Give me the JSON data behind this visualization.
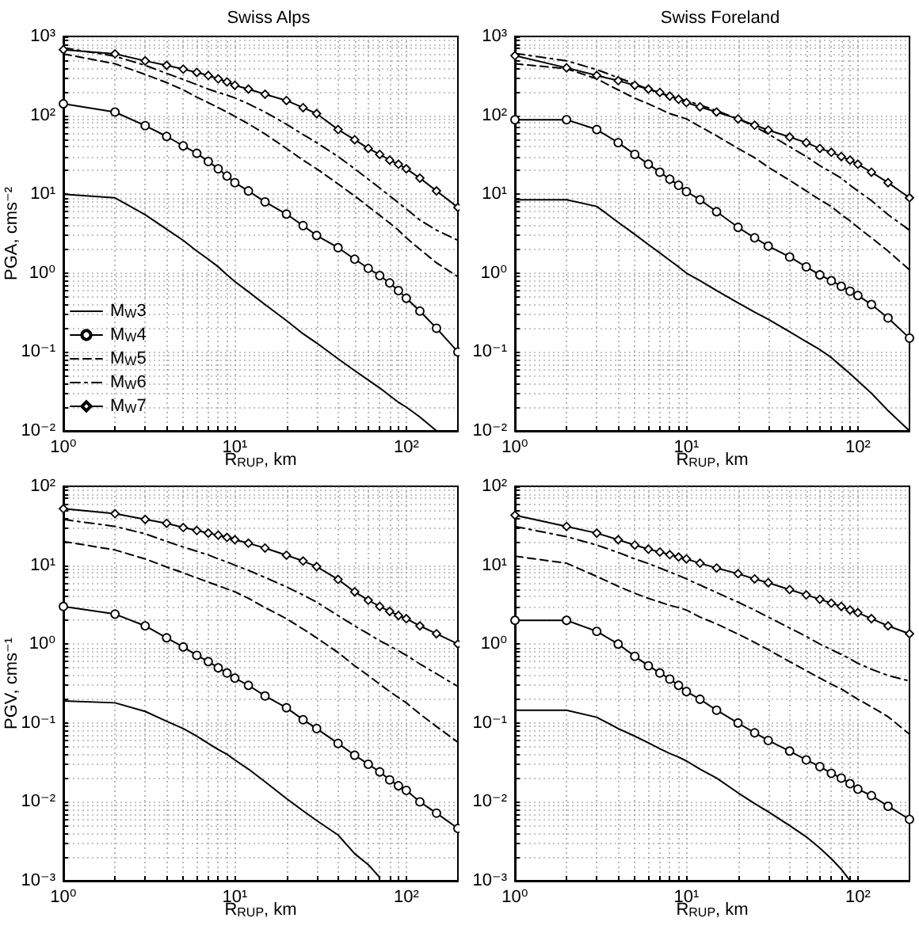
{
  "chart_data": [
    {
      "type": "line",
      "title": "Swiss Alps",
      "xlabel": "R$_{RUP}$, km",
      "ylabel": "PGA, cms⁻²",
      "log": "xy",
      "grid": true,
      "legend": "bottom left",
      "xlim": [
        1,
        200
      ],
      "ylim": [
        0.01,
        1000
      ],
      "xticks": [
        {
          "value": 1,
          "label": "10⁰"
        },
        {
          "value": 2,
          "label": null
        },
        {
          "value": 3,
          "label": null
        },
        {
          "value": 4,
          "label": null
        },
        {
          "value": 5,
          "label": null
        },
        {
          "value": 6,
          "label": null
        },
        {
          "value": 7,
          "label": null
        },
        {
          "value": 8,
          "label": null
        },
        {
          "value": 9,
          "label": null
        },
        {
          "value": 10,
          "label": "10¹"
        },
        {
          "value": 20,
          "label": null
        },
        {
          "value": 30,
          "label": null
        },
        {
          "value": 40,
          "label": null
        },
        {
          "value": 50,
          "label": null
        },
        {
          "value": 60,
          "label": null
        },
        {
          "value": 70,
          "label": null
        },
        {
          "value": 80,
          "label": null
        },
        {
          "value": 90,
          "label": null
        },
        {
          "value": 100,
          "label": "10²"
        }
      ],
      "yticks": [
        {
          "value": 0.01,
          "label": "10⁻²"
        },
        {
          "value": 0.02,
          "label": null
        },
        {
          "value": 0.03,
          "label": null
        },
        {
          "value": 0.04,
          "label": null
        },
        {
          "value": 0.05,
          "label": null
        },
        {
          "value": 0.06,
          "label": null
        },
        {
          "value": 0.07,
          "label": null
        },
        {
          "value": 0.08,
          "label": null
        },
        {
          "value": 0.09,
          "label": null
        },
        {
          "value": 0.1,
          "label": "10⁻¹"
        },
        {
          "value": 0.2,
          "label": null
        },
        {
          "value": 0.3,
          "label": null
        },
        {
          "value": 0.4,
          "label": null
        },
        {
          "value": 0.5,
          "label": null
        },
        {
          "value": 0.6,
          "label": null
        },
        {
          "value": 0.7,
          "label": null
        },
        {
          "value": 0.8,
          "label": null
        },
        {
          "value": 0.9,
          "label": null
        },
        {
          "value": 1,
          "label": "10⁰"
        },
        {
          "value": 2,
          "label": null
        },
        {
          "value": 3,
          "label": null
        },
        {
          "value": 4,
          "label": null
        },
        {
          "value": 5,
          "label": null
        },
        {
          "value": 6,
          "label": null
        },
        {
          "value": 7,
          "label": null
        },
        {
          "value": 8,
          "label": null
        },
        {
          "value": 9,
          "label": null
        },
        {
          "value": 10,
          "label": "10¹"
        },
        {
          "value": 20,
          "label": null
        },
        {
          "value": 30,
          "label": null
        },
        {
          "value": 40,
          "label": null
        },
        {
          "value": 50,
          "label": null
        },
        {
          "value": 60,
          "label": null
        },
        {
          "value": 70,
          "label": null
        },
        {
          "value": 80,
          "label": null
        },
        {
          "value": 90,
          "label": null
        },
        {
          "value": 100,
          "label": "10²"
        },
        {
          "value": 200,
          "label": null
        },
        {
          "value": 300,
          "label": null
        },
        {
          "value": 400,
          "label": null
        },
        {
          "value": 500,
          "label": null
        },
        {
          "value": 600,
          "label": null
        },
        {
          "value": 700,
          "label": null
        },
        {
          "value": 800,
          "label": null
        },
        {
          "value": 900,
          "label": null
        },
        {
          "value": 1000,
          "label": "10³"
        }
      ],
      "x": [
        1,
        2,
        3,
        4,
        5,
        6,
        7,
        8,
        9,
        10,
        12,
        15,
        20,
        25,
        30,
        40,
        50,
        60,
        70,
        80,
        90,
        100,
        120,
        150,
        200
      ],
      "series": [
        {
          "name": "M$_{W}$3",
          "color": "#000000",
          "marker": "none",
          "line_style": "solid",
          "values": [
            10,
            9,
            5.5,
            3.6,
            2.6,
            1.9,
            1.5,
            1.2,
            0.95,
            0.78,
            0.58,
            0.4,
            0.25,
            0.17,
            0.13,
            0.082,
            0.058,
            0.044,
            0.035,
            0.028,
            0.023,
            0.02,
            0.015,
            0.01,
            null
          ]
        },
        {
          "name": "M$_{W}$4",
          "color": "#000000",
          "marker": "circle",
          "line_style": "solid",
          "values": [
            140,
            110,
            74,
            54,
            41,
            33,
            26,
            21,
            17,
            14,
            11,
            8,
            5.6,
            4.0,
            3.0,
            2.1,
            1.5,
            1.15,
            0.93,
            0.75,
            0.6,
            0.48,
            0.33,
            0.2,
            0.1
          ]
        },
        {
          "name": "M$_{W}$5",
          "color": "#000000",
          "marker": "none",
          "line_style": "dashed",
          "values": [
            600,
            450,
            330,
            260,
            210,
            170,
            145,
            125,
            110,
            97,
            78,
            58,
            38,
            27,
            21,
            13.5,
            9.5,
            7,
            5.4,
            4.3,
            3.5,
            2.8,
            2.0,
            1.35,
            0.9
          ]
        },
        {
          "name": "M$_{W}$6",
          "color": "#000000",
          "marker": "none",
          "line_style": "dashdot",
          "values": [
            720,
            560,
            430,
            340,
            285,
            245,
            215,
            195,
            180,
            166,
            140,
            110,
            77,
            57,
            45,
            30,
            21,
            15.5,
            12,
            9.5,
            7.8,
            6.5,
            4.7,
            3.5,
            2.6
          ]
        },
        {
          "name": "M$_{W}$7",
          "color": "#000000",
          "marker": "diamond",
          "line_style": "solid",
          "values": [
            680,
            600,
            490,
            430,
            385,
            350,
            320,
            290,
            265,
            240,
            215,
            185,
            154,
            125,
            105,
            66,
            49,
            38,
            32,
            27,
            24,
            21,
            16,
            11,
            6.8
          ]
        }
      ]
    },
    {
      "type": "line",
      "title": "Swiss Foreland",
      "xlabel": "R$_{RUP}$, km",
      "log": "xy",
      "grid": true,
      "xlim": [
        1,
        200
      ],
      "ylim": [
        0.01,
        1000
      ],
      "xticks": [
        {
          "value": 1,
          "label": "10⁰"
        },
        {
          "value": 2,
          "label": null
        },
        {
          "value": 3,
          "label": null
        },
        {
          "value": 4,
          "label": null
        },
        {
          "value": 5,
          "label": null
        },
        {
          "value": 6,
          "label": null
        },
        {
          "value": 7,
          "label": null
        },
        {
          "value": 8,
          "label": null
        },
        {
          "value": 9,
          "label": null
        },
        {
          "value": 10,
          "label": "10¹"
        },
        {
          "value": 20,
          "label": null
        },
        {
          "value": 30,
          "label": null
        },
        {
          "value": 40,
          "label": null
        },
        {
          "value": 50,
          "label": null
        },
        {
          "value": 60,
          "label": null
        },
        {
          "value": 70,
          "label": null
        },
        {
          "value": 80,
          "label": null
        },
        {
          "value": 90,
          "label": null
        },
        {
          "value": 100,
          "label": "10²"
        }
      ],
      "yticks": [
        {
          "value": 0.01,
          "label": "10⁻²"
        },
        {
          "value": 0.02,
          "label": null
        },
        {
          "value": 0.03,
          "label": null
        },
        {
          "value": 0.04,
          "label": null
        },
        {
          "value": 0.05,
          "label": null
        },
        {
          "value": 0.06,
          "label": null
        },
        {
          "value": 0.07,
          "label": null
        },
        {
          "value": 0.08,
          "label": null
        },
        {
          "value": 0.09,
          "label": null
        },
        {
          "value": 0.1,
          "label": "10⁻¹"
        },
        {
          "value": 0.2,
          "label": null
        },
        {
          "value": 0.3,
          "label": null
        },
        {
          "value": 0.4,
          "label": null
        },
        {
          "value": 0.5,
          "label": null
        },
        {
          "value": 0.6,
          "label": null
        },
        {
          "value": 0.7,
          "label": null
        },
        {
          "value": 0.8,
          "label": null
        },
        {
          "value": 0.9,
          "label": null
        },
        {
          "value": 1,
          "label": "10⁰"
        },
        {
          "value": 2,
          "label": null
        },
        {
          "value": 3,
          "label": null
        },
        {
          "value": 4,
          "label": null
        },
        {
          "value": 5,
          "label": null
        },
        {
          "value": 6,
          "label": null
        },
        {
          "value": 7,
          "label": null
        },
        {
          "value": 8,
          "label": null
        },
        {
          "value": 9,
          "label": null
        },
        {
          "value": 10,
          "label": "10¹"
        },
        {
          "value": 20,
          "label": null
        },
        {
          "value": 30,
          "label": null
        },
        {
          "value": 40,
          "label": null
        },
        {
          "value": 50,
          "label": null
        },
        {
          "value": 60,
          "label": null
        },
        {
          "value": 70,
          "label": null
        },
        {
          "value": 80,
          "label": null
        },
        {
          "value": 90,
          "label": null
        },
        {
          "value": 100,
          "label": "10²"
        },
        {
          "value": 200,
          "label": null
        },
        {
          "value": 300,
          "label": null
        },
        {
          "value": 400,
          "label": null
        },
        {
          "value": 500,
          "label": null
        },
        {
          "value": 600,
          "label": null
        },
        {
          "value": 700,
          "label": null
        },
        {
          "value": 800,
          "label": null
        },
        {
          "value": 900,
          "label": null
        },
        {
          "value": 1000,
          "label": "10³"
        }
      ],
      "x": [
        1,
        2,
        3,
        4,
        5,
        6,
        7,
        8,
        9,
        10,
        12,
        15,
        20,
        25,
        30,
        40,
        50,
        60,
        70,
        80,
        90,
        100,
        120,
        150,
        200
      ],
      "series": [
        {
          "color": "#000000",
          "marker": "none",
          "line_style": "solid",
          "values": [
            8.5,
            8.5,
            7,
            4.4,
            3.1,
            2.3,
            1.8,
            1.45,
            1.2,
            1.0,
            0.8,
            0.6,
            0.42,
            0.32,
            0.26,
            0.18,
            0.135,
            0.107,
            0.085,
            0.066,
            0.053,
            0.043,
            0.03,
            0.018,
            0.01
          ]
        },
        {
          "color": "#000000",
          "marker": "circle",
          "line_style": "solid",
          "values": [
            88,
            88,
            66,
            45,
            32,
            24,
            19,
            15.5,
            13,
            10.8,
            8.5,
            6,
            3.8,
            2.8,
            2.2,
            1.6,
            1.2,
            0.95,
            0.8,
            0.68,
            0.59,
            0.52,
            0.4,
            0.27,
            0.15
          ]
        },
        {
          "color": "#000000",
          "marker": "none",
          "line_style": "dashed",
          "values": [
            450,
            390,
            290,
            210,
            165,
            140,
            120,
            105,
            97,
            90,
            72,
            55,
            38,
            29,
            22,
            15,
            11,
            8.5,
            7,
            5.5,
            4.6,
            3.8,
            2.8,
            1.9,
            1.1
          ]
        },
        {
          "color": "#000000",
          "marker": "none",
          "line_style": "dashdot",
          "values": [
            610,
            490,
            380,
            300,
            250,
            215,
            190,
            175,
            162,
            154,
            135,
            115,
            90,
            72,
            58,
            40,
            30,
            23,
            19,
            16,
            13,
            11,
            8.3,
            5.5,
            3.5
          ]
        },
        {
          "color": "#000000",
          "marker": "diamond",
          "line_style": "solid",
          "values": [
            570,
            400,
            320,
            275,
            240,
            215,
            195,
            175,
            160,
            145,
            128,
            110,
            90,
            75,
            65,
            53,
            45,
            38,
            34,
            30,
            27,
            24,
            19,
            14,
            9
          ]
        }
      ]
    },
    {
      "type": "line",
      "xlabel": "R$_{RUP}$, km",
      "ylabel": "PGV, cms⁻¹",
      "log": "xy",
      "grid": true,
      "xlim": [
        1,
        200
      ],
      "ylim": [
        0.001,
        100
      ],
      "xticks": [
        {
          "value": 1,
          "label": "10⁰"
        },
        {
          "value": 2,
          "label": null
        },
        {
          "value": 3,
          "label": null
        },
        {
          "value": 4,
          "label": null
        },
        {
          "value": 5,
          "label": null
        },
        {
          "value": 6,
          "label": null
        },
        {
          "value": 7,
          "label": null
        },
        {
          "value": 8,
          "label": null
        },
        {
          "value": 9,
          "label": null
        },
        {
          "value": 10,
          "label": "10¹"
        },
        {
          "value": 20,
          "label": null
        },
        {
          "value": 30,
          "label": null
        },
        {
          "value": 40,
          "label": null
        },
        {
          "value": 50,
          "label": null
        },
        {
          "value": 60,
          "label": null
        },
        {
          "value": 70,
          "label": null
        },
        {
          "value": 80,
          "label": null
        },
        {
          "value": 90,
          "label": null
        },
        {
          "value": 100,
          "label": "10²"
        }
      ],
      "yticks": [
        {
          "value": 0.001,
          "label": "10⁻³"
        },
        {
          "value": 0.002,
          "label": null
        },
        {
          "value": 0.003,
          "label": null
        },
        {
          "value": 0.004,
          "label": null
        },
        {
          "value": 0.005,
          "label": null
        },
        {
          "value": 0.006,
          "label": null
        },
        {
          "value": 0.007,
          "label": null
        },
        {
          "value": 0.008,
          "label": null
        },
        {
          "value": 0.009,
          "label": null
        },
        {
          "value": 0.01,
          "label": "10⁻²"
        },
        {
          "value": 0.02,
          "label": null
        },
        {
          "value": 0.03,
          "label": null
        },
        {
          "value": 0.04,
          "label": null
        },
        {
          "value": 0.05,
          "label": null
        },
        {
          "value": 0.06,
          "label": null
        },
        {
          "value": 0.07,
          "label": null
        },
        {
          "value": 0.08,
          "label": null
        },
        {
          "value": 0.09,
          "label": null
        },
        {
          "value": 0.1,
          "label": "10⁻¹"
        },
        {
          "value": 0.2,
          "label": null
        },
        {
          "value": 0.3,
          "label": null
        },
        {
          "value": 0.4,
          "label": null
        },
        {
          "value": 0.5,
          "label": null
        },
        {
          "value": 0.6,
          "label": null
        },
        {
          "value": 0.7,
          "label": null
        },
        {
          "value": 0.8,
          "label": null
        },
        {
          "value": 0.9,
          "label": null
        },
        {
          "value": 1,
          "label": "10⁰"
        },
        {
          "value": 2,
          "label": null
        },
        {
          "value": 3,
          "label": null
        },
        {
          "value": 4,
          "label": null
        },
        {
          "value": 5,
          "label": null
        },
        {
          "value": 6,
          "label": null
        },
        {
          "value": 7,
          "label": null
        },
        {
          "value": 8,
          "label": null
        },
        {
          "value": 9,
          "label": null
        },
        {
          "value": 10,
          "label": "10¹"
        },
        {
          "value": 20,
          "label": null
        },
        {
          "value": 30,
          "label": null
        },
        {
          "value": 40,
          "label": null
        },
        {
          "value": 50,
          "label": null
        },
        {
          "value": 60,
          "label": null
        },
        {
          "value": 70,
          "label": null
        },
        {
          "value": 80,
          "label": null
        },
        {
          "value": 90,
          "label": null
        },
        {
          "value": 100,
          "label": "10²"
        }
      ],
      "x": [
        1,
        2,
        3,
        4,
        5,
        6,
        7,
        8,
        9,
        10,
        12,
        15,
        20,
        25,
        30,
        40,
        50,
        60,
        70,
        80,
        90,
        100,
        120,
        150,
        200
      ],
      "series": [
        {
          "color": "#000000",
          "marker": "none",
          "line_style": "solid",
          "values": [
            0.19,
            0.18,
            0.14,
            0.105,
            0.085,
            0.068,
            0.055,
            0.046,
            0.04,
            0.034,
            0.026,
            0.018,
            0.011,
            0.0077,
            0.0058,
            0.0038,
            0.0022,
            0.0016,
            0.0011,
            null,
            null,
            null,
            null,
            null,
            null
          ]
        },
        {
          "color": "#000000",
          "marker": "circle",
          "line_style": "solid",
          "values": [
            3.0,
            2.4,
            1.7,
            1.2,
            0.92,
            0.72,
            0.6,
            0.5,
            0.43,
            0.37,
            0.3,
            0.22,
            0.156,
            0.11,
            0.085,
            0.055,
            0.039,
            0.03,
            0.024,
            0.019,
            0.016,
            0.014,
            0.01,
            0.0072,
            0.0046
          ]
        },
        {
          "color": "#000000",
          "marker": "none",
          "line_style": "dashed",
          "values": [
            20,
            15.6,
            12,
            9.5,
            8,
            6.9,
            6.1,
            5.5,
            5,
            4.6,
            3.8,
            2.9,
            2.1,
            1.55,
            1.2,
            0.78,
            0.53,
            0.4,
            0.31,
            0.25,
            0.21,
            0.18,
            0.13,
            0.09,
            0.057
          ]
        },
        {
          "color": "#000000",
          "marker": "none",
          "line_style": "dashdot",
          "values": [
            38,
            31,
            25,
            20,
            17,
            15,
            13.5,
            12,
            11,
            10,
            8.6,
            7,
            5.3,
            4.2,
            3.4,
            2.3,
            1.7,
            1.35,
            1.1,
            0.95,
            0.82,
            0.72,
            0.56,
            0.42,
            0.29
          ]
        },
        {
          "color": "#000000",
          "marker": "diamond",
          "line_style": "solid",
          "values": [
            52,
            45,
            38,
            34,
            30,
            27.5,
            25.5,
            24,
            22.5,
            21,
            19,
            16.5,
            13.4,
            11.3,
            9.6,
            6.6,
            4.6,
            3.6,
            3.0,
            2.6,
            2.3,
            2.1,
            1.7,
            1.35,
            1.0
          ]
        }
      ]
    },
    {
      "type": "line",
      "xlabel": "R$_{RUP}$, km",
      "log": "xy",
      "grid": true,
      "xlim": [
        1,
        200
      ],
      "ylim": [
        0.001,
        100
      ],
      "xticks": [
        {
          "value": 1,
          "label": "10⁰"
        },
        {
          "value": 2,
          "label": null
        },
        {
          "value": 3,
          "label": null
        },
        {
          "value": 4,
          "label": null
        },
        {
          "value": 5,
          "label": null
        },
        {
          "value": 6,
          "label": null
        },
        {
          "value": 7,
          "label": null
        },
        {
          "value": 8,
          "label": null
        },
        {
          "value": 9,
          "label": null
        },
        {
          "value": 10,
          "label": "10¹"
        },
        {
          "value": 20,
          "label": null
        },
        {
          "value": 30,
          "label": null
        },
        {
          "value": 40,
          "label": null
        },
        {
          "value": 50,
          "label": null
        },
        {
          "value": 60,
          "label": null
        },
        {
          "value": 70,
          "label": null
        },
        {
          "value": 80,
          "label": null
        },
        {
          "value": 90,
          "label": null
        },
        {
          "value": 100,
          "label": "10²"
        }
      ],
      "yticks": [
        {
          "value": 0.001,
          "label": "10⁻³"
        },
        {
          "value": 0.002,
          "label": null
        },
        {
          "value": 0.003,
          "label": null
        },
        {
          "value": 0.004,
          "label": null
        },
        {
          "value": 0.005,
          "label": null
        },
        {
          "value": 0.006,
          "label": null
        },
        {
          "value": 0.007,
          "label": null
        },
        {
          "value": 0.008,
          "label": null
        },
        {
          "value": 0.009,
          "label": null
        },
        {
          "value": 0.01,
          "label": "10⁻²"
        },
        {
          "value": 0.02,
          "label": null
        },
        {
          "value": 0.03,
          "label": null
        },
        {
          "value": 0.04,
          "label": null
        },
        {
          "value": 0.05,
          "label": null
        },
        {
          "value": 0.06,
          "label": null
        },
        {
          "value": 0.07,
          "label": null
        },
        {
          "value": 0.08,
          "label": null
        },
        {
          "value": 0.09,
          "label": null
        },
        {
          "value": 0.1,
          "label": "10⁻¹"
        },
        {
          "value": 0.2,
          "label": null
        },
        {
          "value": 0.3,
          "label": null
        },
        {
          "value": 0.4,
          "label": null
        },
        {
          "value": 0.5,
          "label": null
        },
        {
          "value": 0.6,
          "label": null
        },
        {
          "value": 0.7,
          "label": null
        },
        {
          "value": 0.8,
          "label": null
        },
        {
          "value": 0.9,
          "label": null
        },
        {
          "value": 1,
          "label": "10⁰"
        },
        {
          "value": 2,
          "label": null
        },
        {
          "value": 3,
          "label": null
        },
        {
          "value": 4,
          "label": null
        },
        {
          "value": 5,
          "label": null
        },
        {
          "value": 6,
          "label": null
        },
        {
          "value": 7,
          "label": null
        },
        {
          "value": 8,
          "label": null
        },
        {
          "value": 9,
          "label": null
        },
        {
          "value": 10,
          "label": "10¹"
        },
        {
          "value": 20,
          "label": null
        },
        {
          "value": 30,
          "label": null
        },
        {
          "value": 40,
          "label": null
        },
        {
          "value": 50,
          "label": null
        },
        {
          "value": 60,
          "label": null
        },
        {
          "value": 70,
          "label": null
        },
        {
          "value": 80,
          "label": null
        },
        {
          "value": 90,
          "label": null
        },
        {
          "value": 100,
          "label": "10²"
        }
      ],
      "x": [
        1,
        2,
        3,
        4,
        5,
        6,
        7,
        8,
        9,
        10,
        12,
        15,
        20,
        25,
        30,
        40,
        50,
        60,
        70,
        80,
        90,
        100,
        120,
        150,
        200
      ],
      "series": [
        {
          "color": "#000000",
          "marker": "none",
          "line_style": "solid",
          "values": [
            0.145,
            0.145,
            0.118,
            0.085,
            0.068,
            0.056,
            0.047,
            0.041,
            0.037,
            0.033,
            0.026,
            0.02,
            0.013,
            0.0095,
            0.0075,
            0.005,
            0.0036,
            0.0026,
            0.0019,
            0.0014,
            0.001,
            null,
            null,
            null,
            null
          ]
        },
        {
          "color": "#000000",
          "marker": "circle",
          "line_style": "solid",
          "values": [
            2,
            2,
            1.45,
            1.0,
            0.7,
            0.53,
            0.43,
            0.36,
            0.3,
            0.25,
            0.2,
            0.145,
            0.1,
            0.075,
            0.06,
            0.044,
            0.034,
            0.028,
            0.023,
            0.02,
            0.017,
            0.0145,
            0.012,
            0.0088,
            0.006
          ]
        },
        {
          "color": "#000000",
          "marker": "none",
          "line_style": "dashed",
          "values": [
            13,
            10.6,
            7.2,
            5.4,
            4.4,
            3.8,
            3.4,
            3.1,
            2.9,
            2.7,
            2.2,
            1.8,
            1.34,
            1.05,
            0.85,
            0.6,
            0.46,
            0.37,
            0.31,
            0.27,
            0.23,
            0.2,
            0.16,
            0.12,
            0.072
          ]
        },
        {
          "color": "#000000",
          "marker": "none",
          "line_style": "dashdot",
          "values": [
            31,
            23,
            18,
            14.5,
            12,
            10.5,
            9.2,
            8.2,
            7.4,
            6.7,
            5.6,
            4.5,
            3.4,
            2.7,
            2.2,
            1.6,
            1.25,
            1.0,
            0.85,
            0.74,
            0.65,
            0.57,
            0.48,
            0.4,
            0.34
          ]
        },
        {
          "color": "#000000",
          "marker": "diamond",
          "line_style": "solid",
          "values": [
            43,
            31,
            25.5,
            21,
            18,
            16,
            14.7,
            13.6,
            12.7,
            12,
            10.6,
            9.2,
            7.8,
            6.7,
            6,
            4.9,
            4.2,
            3.7,
            3.3,
            3,
            2.7,
            2.5,
            2.1,
            1.7,
            1.35
          ]
        }
      ]
    }
  ]
}
